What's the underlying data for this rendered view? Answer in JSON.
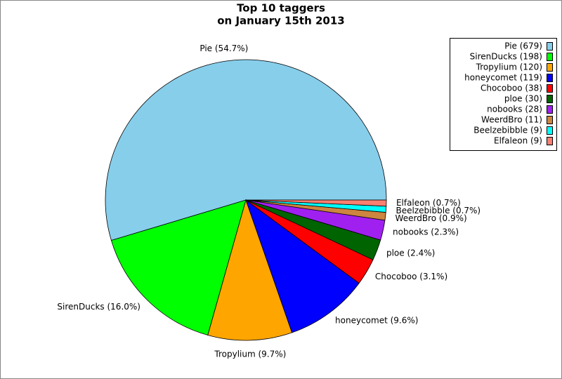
{
  "chart_data": {
    "type": "pie",
    "title": "Top 10 taggers",
    "subtitle": "on January 15th 2013",
    "categories": [
      "Pie (679)",
      "SirenDucks (198)",
      "Tropylium (120)",
      "honeycomet (119)",
      "Chocoboo (38)",
      "ploe (30)",
      "nobooks (28)",
      "WeerdBro (11)",
      "Beelzebibble (9)",
      "Elfaleon (9)"
    ],
    "values": [
      54.7,
      16.0,
      9.7,
      9.6,
      3.1,
      2.4,
      2.3,
      0.9,
      0.7,
      0.7
    ],
    "value_labels": [
      "Pie (54.7%)",
      "SirenDucks (16.0%)",
      "Tropylium (9.7%)",
      "honeycomet (9.6%)",
      "Chocoboo (3.1%)",
      "ploe (2.4%)",
      "nobooks (2.3%)",
      "WeerdBro (0.9%)",
      "Beelzebibble (0.7%)",
      "Elfaleon (0.7%)"
    ],
    "colors": [
      "#87ceeb",
      "#00ff00",
      "#ffa500",
      "#0000ff",
      "#ff0000",
      "#006400",
      "#a020f0",
      "#cd853f",
      "#00ffff",
      "#fa8072"
    ],
    "legend": "upper right"
  }
}
